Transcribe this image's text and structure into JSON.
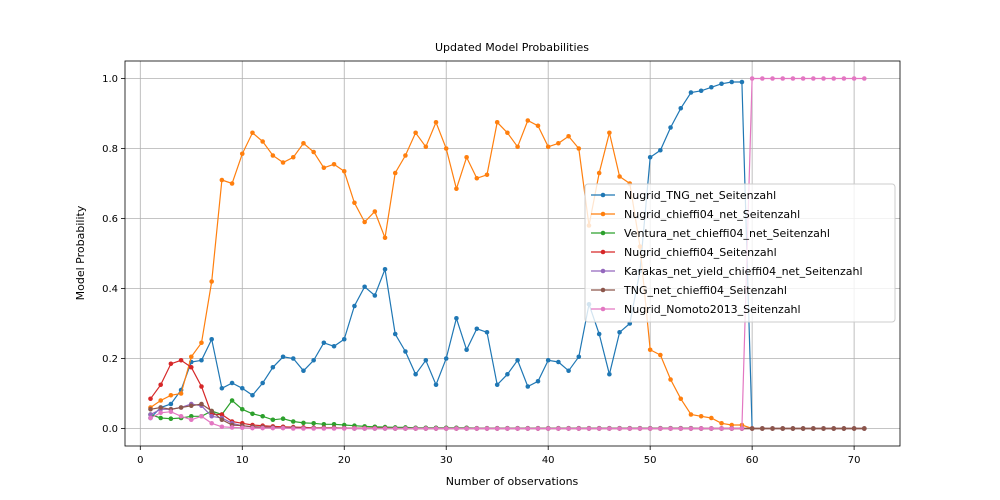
{
  "chart_data": {
    "type": "line",
    "title": "Updated Model Probabilities",
    "xlabel": "Number of observations",
    "ylabel": "Model Probability",
    "xlim": [
      -1.5,
      74.5
    ],
    "ylim": [
      -0.05,
      1.05
    ],
    "xticks": [
      0,
      10,
      20,
      30,
      40,
      50,
      60,
      70
    ],
    "yticks": [
      0.0,
      0.2,
      0.4,
      0.6,
      0.8,
      1.0
    ],
    "xtick_labels": [
      "0",
      "10",
      "20",
      "30",
      "40",
      "50",
      "60",
      "70"
    ],
    "ytick_labels": [
      "0.0",
      "0.2",
      "0.4",
      "0.6",
      "0.8",
      "1.0"
    ],
    "grid": true,
    "legend_position": "right",
    "x": [
      1,
      2,
      3,
      4,
      5,
      6,
      7,
      8,
      9,
      10,
      11,
      12,
      13,
      14,
      15,
      16,
      17,
      18,
      19,
      20,
      21,
      22,
      23,
      24,
      25,
      26,
      27,
      28,
      29,
      30,
      31,
      32,
      33,
      34,
      35,
      36,
      37,
      38,
      39,
      40,
      41,
      42,
      43,
      44,
      45,
      46,
      47,
      48,
      49,
      50,
      51,
      52,
      53,
      54,
      55,
      56,
      57,
      58,
      59,
      60,
      61,
      62,
      63,
      64,
      65,
      66,
      67,
      68,
      69,
      70,
      71
    ],
    "series": [
      {
        "name": "Nugrid_TNG_net_Seitenzahl",
        "color": "#1f77b4",
        "values": [
          0.03,
          0.06,
          0.07,
          0.11,
          0.19,
          0.195,
          0.255,
          0.115,
          0.13,
          0.115,
          0.095,
          0.13,
          0.175,
          0.205,
          0.2,
          0.165,
          0.195,
          0.245,
          0.235,
          0.255,
          0.35,
          0.405,
          0.38,
          0.455,
          0.27,
          0.22,
          0.155,
          0.195,
          0.125,
          0.2,
          0.315,
          0.225,
          0.285,
          0.275,
          0.125,
          0.155,
          0.195,
          0.12,
          0.135,
          0.195,
          0.19,
          0.165,
          0.205,
          0.355,
          0.27,
          0.155,
          0.275,
          0.3,
          0.45,
          0.775,
          0.795,
          0.86,
          0.915,
          0.96,
          0.965,
          0.975,
          0.985,
          0.99,
          0.99,
          0.0,
          0.0,
          0.0,
          0.0,
          0.0,
          0.0,
          0.0,
          0.0,
          0.0,
          0.0,
          0.0,
          0.0
        ]
      },
      {
        "name": "Nugrid_chieffi04_net_Seitenzahl",
        "color": "#ff7f0e",
        "values": [
          0.06,
          0.08,
          0.095,
          0.1,
          0.205,
          0.245,
          0.42,
          0.71,
          0.7,
          0.785,
          0.845,
          0.82,
          0.78,
          0.76,
          0.775,
          0.815,
          0.79,
          0.745,
          0.755,
          0.735,
          0.645,
          0.59,
          0.62,
          0.545,
          0.73,
          0.78,
          0.845,
          0.805,
          0.875,
          0.8,
          0.685,
          0.775,
          0.715,
          0.725,
          0.875,
          0.845,
          0.805,
          0.88,
          0.865,
          0.805,
          0.815,
          0.835,
          0.8,
          0.58,
          0.73,
          0.845,
          0.72,
          0.7,
          0.52,
          0.225,
          0.21,
          0.14,
          0.085,
          0.04,
          0.035,
          0.03,
          0.015,
          0.01,
          0.01,
          0.0,
          0.0,
          0.0,
          0.0,
          0.0,
          0.0,
          0.0,
          0.0,
          0.0,
          0.0,
          0.0,
          0.0
        ]
      },
      {
        "name": "Ventura_net_chieffi04_net_Seitenzahl",
        "color": "#2ca02c",
        "values": [
          0.04,
          0.03,
          0.028,
          0.03,
          0.035,
          0.035,
          0.05,
          0.04,
          0.08,
          0.055,
          0.042,
          0.035,
          0.025,
          0.028,
          0.02,
          0.016,
          0.015,
          0.012,
          0.012,
          0.01,
          0.008,
          0.006,
          0.005,
          0.004,
          0.003,
          0.003,
          0.002,
          0.002,
          0.002,
          0.002,
          0.002,
          0.002,
          0.001,
          0.001,
          0.001,
          0.001,
          0.001,
          0.001,
          0.001,
          0.001,
          0.001,
          0.001,
          0.001,
          0.001,
          0.001,
          0.001,
          0.001,
          0.001,
          0.001,
          0.001,
          0.001,
          0.001,
          0.001,
          0.001,
          0.0,
          0.0,
          0.0,
          0.0,
          0.0,
          0.0,
          0.0,
          0.0,
          0.0,
          0.0,
          0.0,
          0.0,
          0.0,
          0.0,
          0.0,
          0.0,
          0.0
        ]
      },
      {
        "name": "Nugrid_chieffi04_Seitenzahl",
        "color": "#d62728",
        "values": [
          0.085,
          0.125,
          0.185,
          0.195,
          0.175,
          0.12,
          0.04,
          0.04,
          0.02,
          0.015,
          0.01,
          0.008,
          0.006,
          0.005,
          0.004,
          0.003,
          0.002,
          0.002,
          0.002,
          0.001,
          0.001,
          0.001,
          0.001,
          0.001,
          0.0,
          0.0,
          0.0,
          0.0,
          0.0,
          0.0,
          0.0,
          0.0,
          0.0,
          0.0,
          0.0,
          0.0,
          0.0,
          0.0,
          0.0,
          0.0,
          0.0,
          0.0,
          0.0,
          0.0,
          0.0,
          0.0,
          0.0,
          0.0,
          0.0,
          0.0,
          0.0,
          0.0,
          0.0,
          0.0,
          0.0,
          0.0,
          0.0,
          0.0,
          0.0,
          0.0,
          0.0,
          0.0,
          0.0,
          0.0,
          0.0,
          0.0,
          0.0,
          0.0,
          0.0,
          0.0,
          0.0
        ]
      },
      {
        "name": "Karakas_net_yield_chieffi04_net_Seitenzahl",
        "color": "#9467bd",
        "values": [
          0.04,
          0.055,
          0.055,
          0.06,
          0.07,
          0.065,
          0.035,
          0.03,
          0.015,
          0.008,
          0.005,
          0.004,
          0.003,
          0.002,
          0.002,
          0.001,
          0.001,
          0.001,
          0.001,
          0.001,
          0.0,
          0.0,
          0.0,
          0.0,
          0.0,
          0.0,
          0.0,
          0.0,
          0.0,
          0.0,
          0.0,
          0.0,
          0.0,
          0.0,
          0.0,
          0.0,
          0.0,
          0.0,
          0.0,
          0.0,
          0.0,
          0.0,
          0.0,
          0.0,
          0.0,
          0.0,
          0.0,
          0.0,
          0.0,
          0.0,
          0.0,
          0.0,
          0.0,
          0.0,
          0.0,
          0.0,
          0.0,
          0.0,
          0.0,
          0.0,
          0.0,
          0.0,
          0.0,
          0.0,
          0.0,
          0.0,
          0.0,
          0.0,
          0.0,
          0.0,
          0.0
        ]
      },
      {
        "name": "TNG_net_chieffi04_Seitenzahl",
        "color": "#8c564b",
        "values": [
          0.055,
          0.06,
          0.055,
          0.06,
          0.065,
          0.07,
          0.05,
          0.025,
          0.01,
          0.008,
          0.005,
          0.004,
          0.003,
          0.002,
          0.002,
          0.001,
          0.001,
          0.001,
          0.001,
          0.001,
          0.0,
          0.0,
          0.0,
          0.0,
          0.0,
          0.0,
          0.0,
          0.0,
          0.0,
          0.0,
          0.0,
          0.0,
          0.0,
          0.0,
          0.0,
          0.0,
          0.0,
          0.0,
          0.0,
          0.0,
          0.0,
          0.0,
          0.0,
          0.0,
          0.0,
          0.0,
          0.0,
          0.0,
          0.0,
          0.0,
          0.0,
          0.0,
          0.0,
          0.0,
          0.0,
          0.0,
          0.0,
          0.0,
          0.0,
          0.0,
          0.0,
          0.0,
          0.0,
          0.0,
          0.0,
          0.0,
          0.0,
          0.0,
          0.0,
          0.0,
          0.0
        ]
      },
      {
        "name": "Nugrid_Nomoto2013_Seitenzahl",
        "color": "#e377c2",
        "values": [
          0.03,
          0.045,
          0.048,
          0.035,
          0.025,
          0.035,
          0.015,
          0.005,
          0.003,
          0.002,
          0.001,
          0.001,
          0.001,
          0.001,
          0.0,
          0.0,
          0.0,
          0.0,
          0.0,
          0.0,
          0.0,
          0.0,
          0.0,
          0.0,
          0.0,
          0.0,
          0.0,
          0.0,
          0.0,
          0.0,
          0.0,
          0.0,
          0.0,
          0.0,
          0.0,
          0.0,
          0.0,
          0.0,
          0.0,
          0.0,
          0.0,
          0.0,
          0.0,
          0.0,
          0.0,
          0.0,
          0.0,
          0.0,
          0.0,
          0.0,
          0.0,
          0.0,
          0.0,
          0.0,
          0.0,
          0.0,
          0.0,
          0.0,
          0.0,
          1.0,
          1.0,
          1.0,
          1.0,
          1.0,
          1.0,
          1.0,
          1.0,
          1.0,
          1.0,
          1.0,
          1.0
        ]
      }
    ]
  }
}
